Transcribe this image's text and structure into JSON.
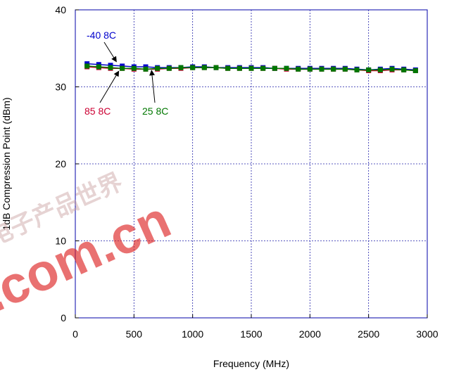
{
  "chart_data": {
    "type": "scatter",
    "xlabel": "Frequency (MHz)",
    "ylabel": "1dB Compression Point (dBm)",
    "xlim": [
      0,
      3000
    ],
    "ylim": [
      0,
      40
    ],
    "x_ticks": [
      0,
      500,
      1000,
      1500,
      2000,
      2500,
      3000
    ],
    "y_ticks": [
      0,
      10,
      20,
      30,
      40
    ],
    "grid": true,
    "series": [
      {
        "name": "-40 8C",
        "color": "#0000cc",
        "x": [
          100,
          200,
          300,
          400,
          500,
          600,
          700,
          800,
          900,
          1000,
          1100,
          1200,
          1300,
          1400,
          1500,
          1600,
          1700,
          1800,
          1900,
          2000,
          2100,
          2200,
          2300,
          2400,
          2500,
          2600,
          2700,
          2800,
          2900
        ],
        "y": [
          33.0,
          32.9,
          32.8,
          32.7,
          32.6,
          32.6,
          32.5,
          32.5,
          32.5,
          32.6,
          32.6,
          32.5,
          32.5,
          32.5,
          32.5,
          32.5,
          32.4,
          32.4,
          32.4,
          32.4,
          32.4,
          32.4,
          32.4,
          32.3,
          32.2,
          32.3,
          32.4,
          32.3,
          32.2
        ]
      },
      {
        "name": "85 8C",
        "color": "#cc0033",
        "x": [
          100,
          200,
          300,
          400,
          500,
          600,
          700,
          800,
          900,
          1000,
          1100,
          1200,
          1300,
          1400,
          1500,
          1600,
          1700,
          1800,
          1900,
          2000,
          2100,
          2200,
          2300,
          2400,
          2500,
          2600,
          2700,
          2800,
          2900
        ],
        "y": [
          32.6,
          32.5,
          32.4,
          32.4,
          32.3,
          32.3,
          32.3,
          32.4,
          32.4,
          32.5,
          32.5,
          32.5,
          32.4,
          32.4,
          32.4,
          32.4,
          32.4,
          32.3,
          32.3,
          32.3,
          32.3,
          32.3,
          32.3,
          32.2,
          32.1,
          32.1,
          32.2,
          32.2,
          32.1
        ]
      },
      {
        "name": "25 8C",
        "color": "#007700",
        "x": [
          100,
          200,
          300,
          400,
          500,
          600,
          700,
          800,
          900,
          1000,
          1100,
          1200,
          1300,
          1400,
          1500,
          1600,
          1700,
          1800,
          1900,
          2000,
          2100,
          2200,
          2300,
          2400,
          2500,
          2600,
          2700,
          2800,
          2900
        ],
        "y": [
          32.7,
          32.6,
          32.5,
          32.4,
          32.4,
          32.3,
          32.4,
          32.4,
          32.5,
          32.5,
          32.5,
          32.5,
          32.4,
          32.4,
          32.4,
          32.4,
          32.4,
          32.4,
          32.3,
          32.3,
          32.3,
          32.3,
          32.3,
          32.2,
          32.2,
          32.2,
          32.3,
          32.2,
          32.1
        ]
      }
    ],
    "annotations": [
      {
        "text": "-40 8C",
        "color": "#0000cc",
        "points_to": [
          350,
          33.0
        ]
      },
      {
        "text": "85 8C",
        "color": "#cc0033",
        "points_to": [
          370,
          32.3
        ]
      },
      {
        "text": "25 8C",
        "color": "#007700",
        "points_to": [
          650,
          32.4
        ]
      }
    ]
  },
  "watermark": {
    "domain_text": ".com.cn",
    "glyph_text": "电子产品世界",
    "color": "#dd2222"
  }
}
